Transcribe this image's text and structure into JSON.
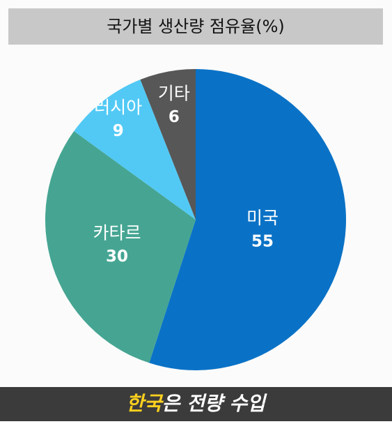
{
  "chart_data": {
    "type": "pie",
    "title": "국가별 생산량 점유율(%)",
    "categories": [
      "미국",
      "카타르",
      "러시아",
      "기타"
    ],
    "values": [
      55,
      30,
      9,
      6
    ],
    "colors": [
      "#0a72c6",
      "#45a592",
      "#52c9f5",
      "#575757"
    ]
  },
  "banner": {
    "highlight": "한국",
    "rest": "은 전량 수입"
  }
}
